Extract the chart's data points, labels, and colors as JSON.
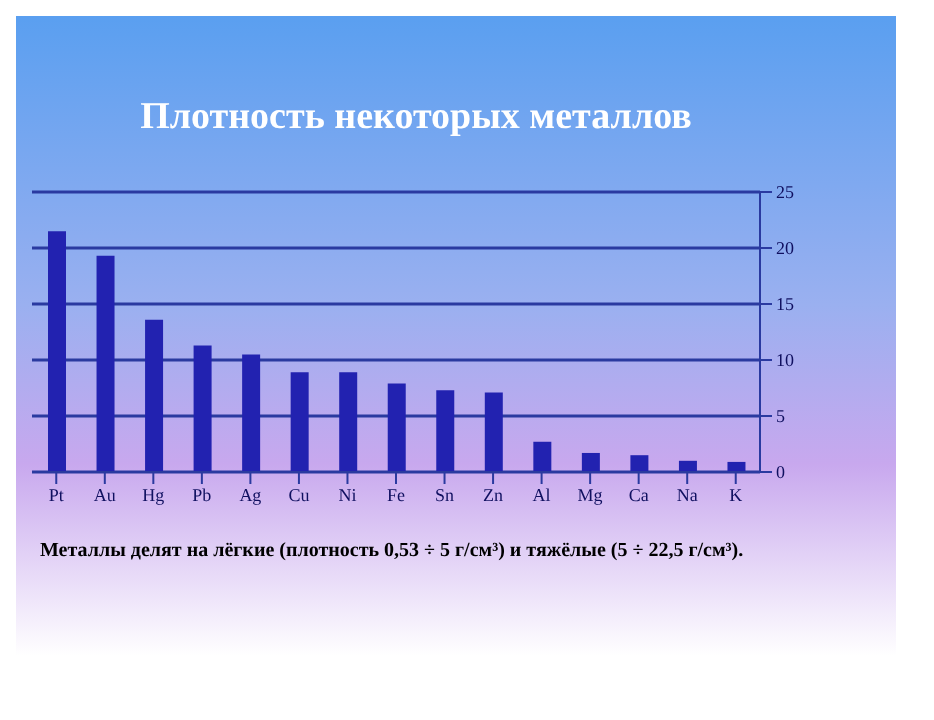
{
  "chart_data": {
    "type": "bar",
    "title": "Плотность некоторых металлов",
    "categories": [
      "Pt",
      "Au",
      "Hg",
      "Pb",
      "Ag",
      "Cu",
      "Ni",
      "Fe",
      "Sn",
      "Zn",
      "Al",
      "Mg",
      "Ca",
      "Na",
      "K"
    ],
    "values": [
      21.5,
      19.3,
      13.6,
      11.3,
      10.5,
      8.9,
      8.9,
      7.9,
      7.3,
      7.1,
      2.7,
      1.7,
      1.5,
      1.0,
      0.9
    ],
    "color": "#2222b0",
    "ylim": [
      0,
      25
    ],
    "yticks": [
      0,
      5,
      10,
      15,
      20,
      25
    ],
    "grid": "y",
    "annotations": [
      "Металлы делят на лёгкие (плотность 0,53 ÷ 5 г/см³) и тяжёлые (5 ÷ 22,5 г/см³)."
    ]
  }
}
